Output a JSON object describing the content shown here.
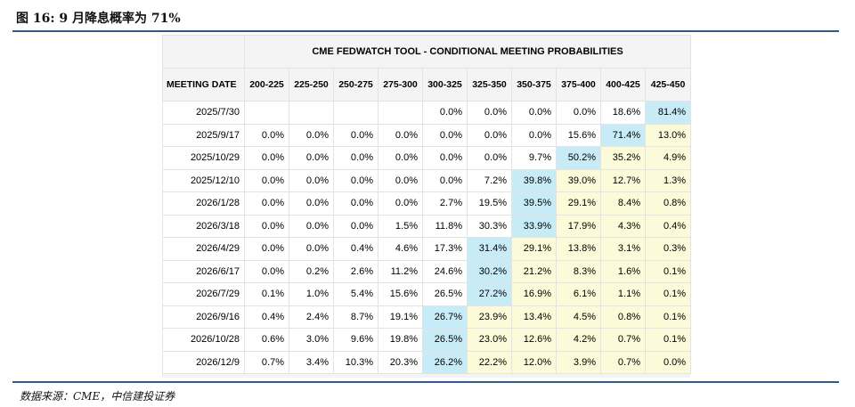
{
  "figure": {
    "title": "图 16: 9 月降息概率为 71%",
    "source": "数据来源：CME，中信建投证券"
  },
  "table": {
    "title": "CME FEDWATCH TOOL - CONDITIONAL MEETING PROBABILITIES",
    "date_header": "MEETING DATE",
    "columns": [
      "200-225",
      "225-250",
      "250-275",
      "275-300",
      "300-325",
      "325-350",
      "350-375",
      "375-400",
      "400-425",
      "425-450"
    ],
    "rows": [
      {
        "date": "2025/7/30",
        "values": [
          "",
          "",
          "",
          "",
          "0.0%",
          "0.0%",
          "0.0%",
          "0.0%",
          "18.6%",
          "81.4%"
        ],
        "max": 9
      },
      {
        "date": "2025/9/17",
        "values": [
          "0.0%",
          "0.0%",
          "0.0%",
          "0.0%",
          "0.0%",
          "0.0%",
          "0.0%",
          "15.6%",
          "71.4%",
          "13.0%"
        ],
        "max": 8
      },
      {
        "date": "2025/10/29",
        "values": [
          "0.0%",
          "0.0%",
          "0.0%",
          "0.0%",
          "0.0%",
          "0.0%",
          "9.7%",
          "50.2%",
          "35.2%",
          "4.9%"
        ],
        "max": 7
      },
      {
        "date": "2025/12/10",
        "values": [
          "0.0%",
          "0.0%",
          "0.0%",
          "0.0%",
          "0.0%",
          "7.2%",
          "39.8%",
          "39.0%",
          "12.7%",
          "1.3%"
        ],
        "max": 6
      },
      {
        "date": "2026/1/28",
        "values": [
          "0.0%",
          "0.0%",
          "0.0%",
          "0.0%",
          "2.7%",
          "19.5%",
          "39.5%",
          "29.1%",
          "8.4%",
          "0.8%"
        ],
        "max": 6
      },
      {
        "date": "2026/3/18",
        "values": [
          "0.0%",
          "0.0%",
          "0.0%",
          "1.5%",
          "11.8%",
          "30.3%",
          "33.9%",
          "17.9%",
          "4.3%",
          "0.4%"
        ],
        "max": 6
      },
      {
        "date": "2026/4/29",
        "values": [
          "0.0%",
          "0.0%",
          "0.4%",
          "4.6%",
          "17.3%",
          "31.4%",
          "29.1%",
          "13.8%",
          "3.1%",
          "0.3%"
        ],
        "max": 5
      },
      {
        "date": "2026/6/17",
        "values": [
          "0.0%",
          "0.2%",
          "2.6%",
          "11.2%",
          "24.6%",
          "30.2%",
          "21.2%",
          "8.3%",
          "1.6%",
          "0.1%"
        ],
        "max": 5
      },
      {
        "date": "2026/7/29",
        "values": [
          "0.1%",
          "1.0%",
          "5.4%",
          "15.6%",
          "26.5%",
          "27.2%",
          "16.9%",
          "6.1%",
          "1.1%",
          "0.1%"
        ],
        "max": 5
      },
      {
        "date": "2026/9/16",
        "values": [
          "0.4%",
          "2.4%",
          "8.7%",
          "19.1%",
          "26.7%",
          "23.9%",
          "13.4%",
          "4.5%",
          "0.8%",
          "0.1%"
        ],
        "max": 4
      },
      {
        "date": "2026/10/28",
        "values": [
          "0.6%",
          "3.0%",
          "9.6%",
          "19.8%",
          "26.5%",
          "23.0%",
          "12.6%",
          "4.2%",
          "0.7%",
          "0.1%"
        ],
        "max": 4
      },
      {
        "date": "2026/12/9",
        "values": [
          "0.7%",
          "3.4%",
          "10.3%",
          "20.3%",
          "26.2%",
          "22.2%",
          "12.0%",
          "3.9%",
          "0.7%",
          "0.0%"
        ],
        "max": 4
      }
    ],
    "colors": {
      "max_cell": "#c8ecf7",
      "above_max": "#fbfbd9",
      "header_bg": "#f4f4f4",
      "rule": "#2f5a85"
    }
  }
}
